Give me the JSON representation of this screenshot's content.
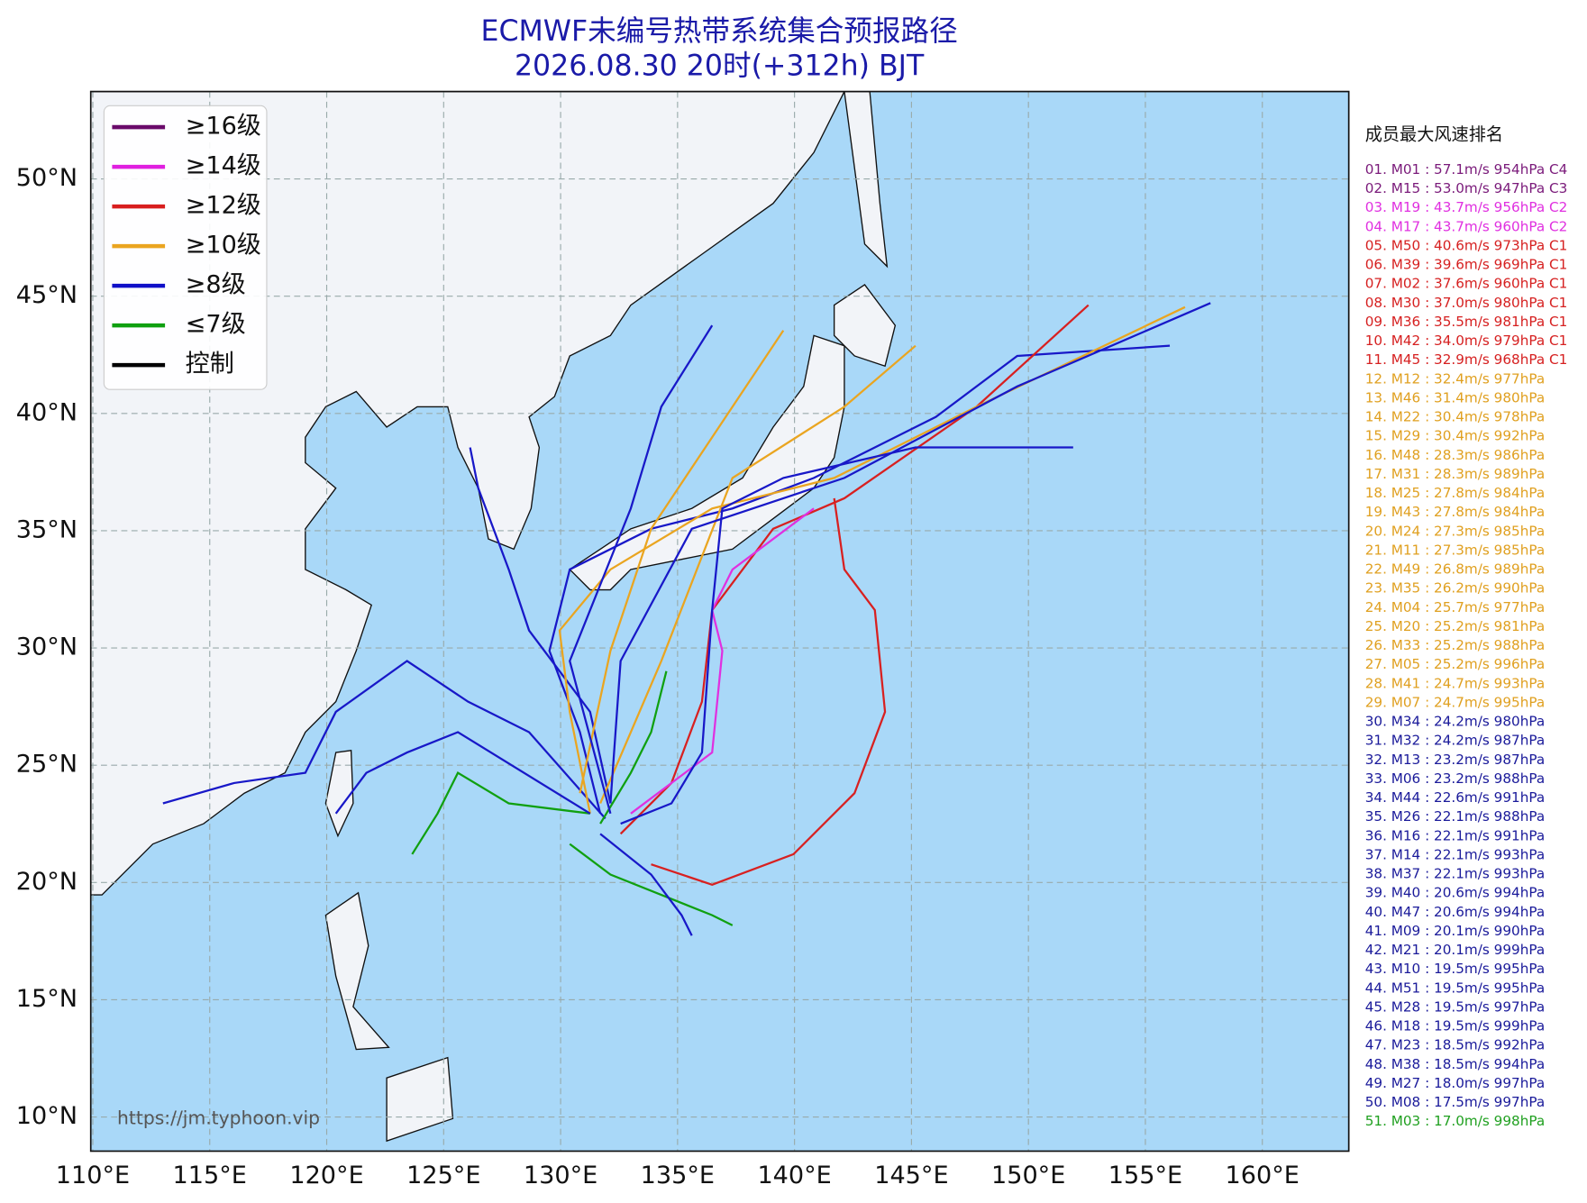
{
  "header": {
    "title": "ECMWF未编号热带系统集合预报路径",
    "subtitle": "2026.08.30 20时(+312h) BJT"
  },
  "map": {
    "lon_labels": [
      "110°E",
      "115°E",
      "120°E",
      "125°E",
      "130°E",
      "135°E",
      "140°E",
      "145°E",
      "150°E",
      "155°E",
      "160°E"
    ],
    "lat_labels": [
      "50°N",
      "45°N",
      "40°N",
      "35°N",
      "30°N",
      "25°N",
      "20°N",
      "15°N",
      "10°N"
    ],
    "source": "https://jm.typhoon.vip"
  },
  "legend": [
    {
      "label": "≥16级",
      "color": "#6a0a6a"
    },
    {
      "label": "≥14级",
      "color": "#e020e0"
    },
    {
      "label": "≥12级",
      "color": "#d81e1e"
    },
    {
      "label": "≥10级",
      "color": "#eaa520"
    },
    {
      "label": "≥8级",
      "color": "#1010c8"
    },
    {
      "label": "≤7级",
      "color": "#10a010"
    },
    {
      "label": "控制",
      "color": "#000000"
    }
  ],
  "ranking": {
    "title": "成员最大风速排名",
    "items": [
      {
        "text": "01. M01 : 57.1m/s 954hPa C4",
        "color": "#7a1a7a"
      },
      {
        "text": "02. M15 : 53.0m/s 947hPa C3",
        "color": "#7a1a7a"
      },
      {
        "text": "03. M19 : 43.7m/s 956hPa C2",
        "color": "#e030e0"
      },
      {
        "text": "04. M17 : 43.7m/s 960hPa C2",
        "color": "#e030e0"
      },
      {
        "text": "05. M50 : 40.6m/s 973hPa C1",
        "color": "#d62020"
      },
      {
        "text": "06. M39 : 39.6m/s 969hPa C1",
        "color": "#d62020"
      },
      {
        "text": "07. M02 : 37.6m/s 960hPa C1",
        "color": "#d62020"
      },
      {
        "text": "08. M30 : 37.0m/s 980hPa C1",
        "color": "#d62020"
      },
      {
        "text": "09. M36 : 35.5m/s 981hPa C1",
        "color": "#d62020"
      },
      {
        "text": "10. M42 : 34.0m/s 979hPa C1",
        "color": "#d62020"
      },
      {
        "text": "11. M45 : 32.9m/s 968hPa C1",
        "color": "#d62020"
      },
      {
        "text": "12. M12 : 32.4m/s 977hPa",
        "color": "#e0a020"
      },
      {
        "text": "13. M46 : 31.4m/s 980hPa",
        "color": "#e0a020"
      },
      {
        "text": "14. M22 : 30.4m/s 978hPa",
        "color": "#e0a020"
      },
      {
        "text": "15. M29 : 30.4m/s 992hPa",
        "color": "#e0a020"
      },
      {
        "text": "16. M48 : 28.3m/s 986hPa",
        "color": "#e0a020"
      },
      {
        "text": "17. M31 : 28.3m/s 989hPa",
        "color": "#e0a020"
      },
      {
        "text": "18. M25 : 27.8m/s 984hPa",
        "color": "#e0a020"
      },
      {
        "text": "19. M43 : 27.8m/s 984hPa",
        "color": "#e0a020"
      },
      {
        "text": "20. M24 : 27.3m/s 985hPa",
        "color": "#e0a020"
      },
      {
        "text": "21. M11 : 27.3m/s 985hPa",
        "color": "#e0a020"
      },
      {
        "text": "22. M49 : 26.8m/s 989hPa",
        "color": "#e0a020"
      },
      {
        "text": "23. M35 : 26.2m/s 990hPa",
        "color": "#e0a020"
      },
      {
        "text": "24. M04 : 25.7m/s 977hPa",
        "color": "#e0a020"
      },
      {
        "text": "25. M20 : 25.2m/s 981hPa",
        "color": "#e0a020"
      },
      {
        "text": "26. M33 : 25.2m/s 988hPa",
        "color": "#e0a020"
      },
      {
        "text": "27. M05 : 25.2m/s 996hPa",
        "color": "#e0a020"
      },
      {
        "text": "28. M41 : 24.7m/s 993hPa",
        "color": "#e0a020"
      },
      {
        "text": "29. M07 : 24.7m/s 995hPa",
        "color": "#e0a020"
      },
      {
        "text": "30. M34 : 24.2m/s 980hPa",
        "color": "#1a1a9a"
      },
      {
        "text": "31. M32 : 24.2m/s 987hPa",
        "color": "#1a1a9a"
      },
      {
        "text": "32. M13 : 23.2m/s 987hPa",
        "color": "#1a1a9a"
      },
      {
        "text": "33. M06 : 23.2m/s 988hPa",
        "color": "#1a1a9a"
      },
      {
        "text": "34. M44 : 22.6m/s 991hPa",
        "color": "#1a1a9a"
      },
      {
        "text": "35. M26 : 22.1m/s 988hPa",
        "color": "#1a1a9a"
      },
      {
        "text": "36. M16 : 22.1m/s 991hPa",
        "color": "#1a1a9a"
      },
      {
        "text": "37. M14 : 22.1m/s 993hPa",
        "color": "#1a1a9a"
      },
      {
        "text": "38. M37 : 22.1m/s 993hPa",
        "color": "#1a1a9a"
      },
      {
        "text": "39. M40 : 20.6m/s 994hPa",
        "color": "#1a1a9a"
      },
      {
        "text": "40. M47 : 20.6m/s 994hPa",
        "color": "#1a1a9a"
      },
      {
        "text": "41. M09 : 20.1m/s 990hPa",
        "color": "#1a1a9a"
      },
      {
        "text": "42. M21 : 20.1m/s 999hPa",
        "color": "#1a1a9a"
      },
      {
        "text": "43. M10 : 19.5m/s 995hPa",
        "color": "#1a1a9a"
      },
      {
        "text": "44. M51 : 19.5m/s 995hPa",
        "color": "#1a1a9a"
      },
      {
        "text": "45. M28 : 19.5m/s 997hPa",
        "color": "#1a1a9a"
      },
      {
        "text": "46. M18 : 19.5m/s 999hPa",
        "color": "#1a1a9a"
      },
      {
        "text": "47. M23 : 18.5m/s 992hPa",
        "color": "#1a1a9a"
      },
      {
        "text": "48. M38 : 18.5m/s 994hPa",
        "color": "#1a1a9a"
      },
      {
        "text": "49. M27 : 18.0m/s 997hPa",
        "color": "#1a1a9a"
      },
      {
        "text": "50. M08 : 17.5m/s 997hPa",
        "color": "#1a1a9a"
      },
      {
        "text": "51. M03 : 17.0m/s 998hPa",
        "color": "#20a020"
      }
    ]
  }
}
